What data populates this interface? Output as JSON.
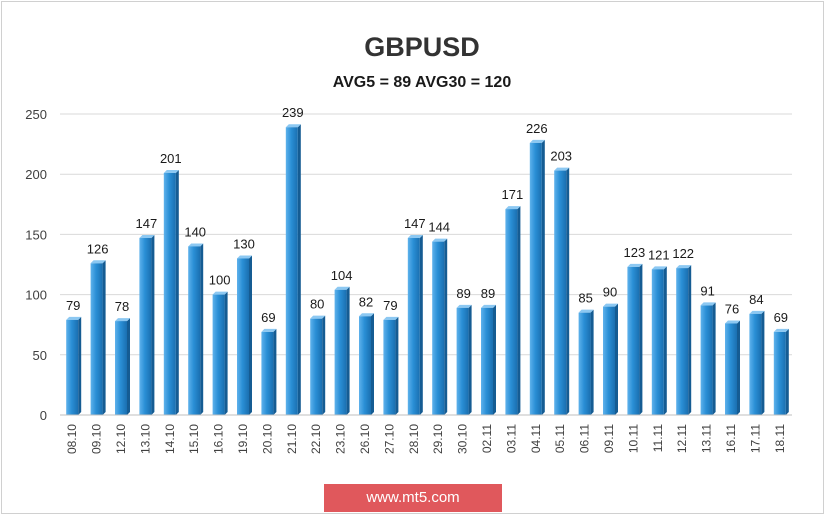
{
  "chart_data": {
    "type": "bar",
    "title": "GBPUSD",
    "subtitle": "AVG5 = 89 AVG30 = 120",
    "xlabel": "",
    "ylabel": "",
    "ylim": [
      0,
      250
    ],
    "yticks": [
      0,
      50,
      100,
      150,
      200,
      250
    ],
    "grid": true,
    "bar_color": "#2a8fd6",
    "categories": [
      "08.10",
      "09.10",
      "12.10",
      "13.10",
      "14.10",
      "15.10",
      "16.10",
      "19.10",
      "20.10",
      "21.10",
      "22.10",
      "23.10",
      "26.10",
      "27.10",
      "28.10",
      "29.10",
      "30.10",
      "02.11",
      "03.11",
      "04.11",
      "05.11",
      "06.11",
      "09.11",
      "10.11",
      "11.11",
      "12.11",
      "13.11",
      "16.11",
      "17.11",
      "18.11"
    ],
    "values": [
      79,
      126,
      78,
      147,
      201,
      140,
      100,
      130,
      69,
      239,
      80,
      104,
      82,
      79,
      147,
      144,
      89,
      89,
      171,
      226,
      203,
      85,
      90,
      123,
      121,
      122,
      91,
      76,
      84,
      69
    ]
  },
  "watermark": {
    "text": "www.mt5.com",
    "color": "#e0585c"
  }
}
